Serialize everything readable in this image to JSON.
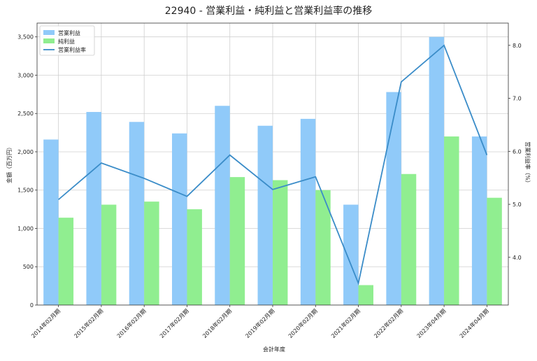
{
  "chart_data": {
    "type": "bar",
    "title": "22940 - 営業利益・純利益と営業利益率の推移",
    "xlabel": "会計年度",
    "ylabel": "金額（百万円）",
    "y2label": "営業利益率（%）",
    "categories": [
      "2014年02月期",
      "2015年02月期",
      "2016年02月期",
      "2017年02月期",
      "2018年02月期",
      "2019年02月期",
      "2020年02月期",
      "2021年02月期",
      "2022年02月期",
      "2023年04月期",
      "2024年04月期"
    ],
    "series": [
      {
        "name": "営業利益",
        "kind": "bar",
        "axis": "left",
        "color": "#90CAF9",
        "values": [
          2160,
          2520,
          2390,
          2240,
          2600,
          2340,
          2430,
          1310,
          2780,
          3500,
          2200
        ]
      },
      {
        "name": "純利益",
        "kind": "bar",
        "axis": "left",
        "color": "#90EE90",
        "values": [
          1140,
          1310,
          1350,
          1250,
          1670,
          1630,
          1500,
          260,
          1710,
          2200,
          1400
        ]
      },
      {
        "name": "営業利益率",
        "kind": "line",
        "axis": "right",
        "color": "#3A8CC8",
        "values": [
          5.09,
          5.78,
          5.49,
          5.15,
          5.93,
          5.28,
          5.52,
          3.51,
          7.31,
          8.0,
          5.93
        ]
      }
    ],
    "ylim": [
      0,
      3680
    ],
    "y2lim": [
      3.1,
      8.42
    ],
    "yticks": [
      0,
      500,
      1000,
      1500,
      2000,
      2500,
      3000,
      3500
    ],
    "ytick_labels": [
      "0",
      "500",
      "1,000",
      "1,500",
      "2,000",
      "2,500",
      "3,000",
      "3,500"
    ],
    "y2ticks": [
      4.0,
      5.0,
      6.0,
      7.0,
      8.0
    ],
    "y2tick_labels": [
      "4.0",
      "5.0",
      "6.0",
      "7.0",
      "8.0"
    ],
    "grid": true,
    "legend": "top-left"
  }
}
